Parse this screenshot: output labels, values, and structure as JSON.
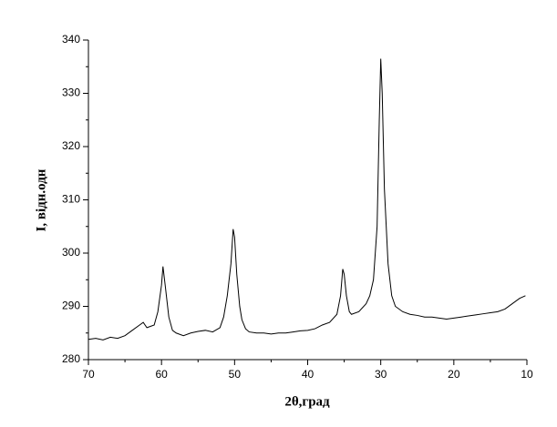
{
  "chart_data": {
    "type": "line",
    "x_label": "2θ,град",
    "y_label": "I, відн.одн",
    "xlim": [
      70,
      10
    ],
    "xticks": [
      70,
      60,
      50,
      40,
      30,
      20,
      10
    ],
    "ylim": [
      280,
      340
    ],
    "yticks": [
      280,
      290,
      300,
      310,
      320,
      330,
      340
    ],
    "color": "#000000",
    "x": [
      70,
      69,
      68,
      67,
      66,
      65,
      64,
      63,
      62.5,
      62,
      61,
      60.5,
      60,
      59.8,
      59.5,
      59,
      58.5,
      58,
      57,
      56,
      55,
      54,
      53,
      52,
      51.5,
      51,
      50.5,
      50.2,
      50,
      49.7,
      49.3,
      49,
      48.5,
      48,
      47,
      46,
      45,
      44,
      43,
      42,
      41,
      40,
      39,
      38,
      37,
      36,
      35.5,
      35.2,
      35,
      34.7,
      34.3,
      34,
      33,
      32,
      31.5,
      31,
      30.5,
      30.2,
      30,
      29.8,
      29.5,
      29,
      28.5,
      28,
      27,
      26,
      25,
      24,
      23,
      22,
      21,
      20,
      19,
      18,
      17,
      16,
      15,
      14,
      13,
      12,
      11,
      10.2
    ],
    "values": [
      283.8,
      284,
      283.7,
      284.2,
      284,
      284.5,
      285.5,
      286.5,
      287,
      286,
      286.5,
      289,
      294,
      297.5,
      294,
      288,
      285.5,
      285,
      284.5,
      285,
      285.3,
      285.5,
      285.2,
      286,
      288,
      292,
      298,
      304.5,
      303,
      296,
      290,
      287.5,
      285.8,
      285.2,
      285,
      285,
      284.8,
      285,
      285,
      285.2,
      285.4,
      285.5,
      285.8,
      286.5,
      287,
      288.5,
      292,
      297,
      296,
      292,
      289,
      288.5,
      289,
      290.5,
      292,
      295,
      305,
      325,
      336.5,
      330,
      312,
      298,
      292,
      290,
      289,
      288.5,
      288.3,
      288,
      288,
      287.8,
      287.6,
      287.8,
      288,
      288.2,
      288.4,
      288.6,
      288.8,
      289,
      289.5,
      290.5,
      291.5,
      292
    ]
  }
}
